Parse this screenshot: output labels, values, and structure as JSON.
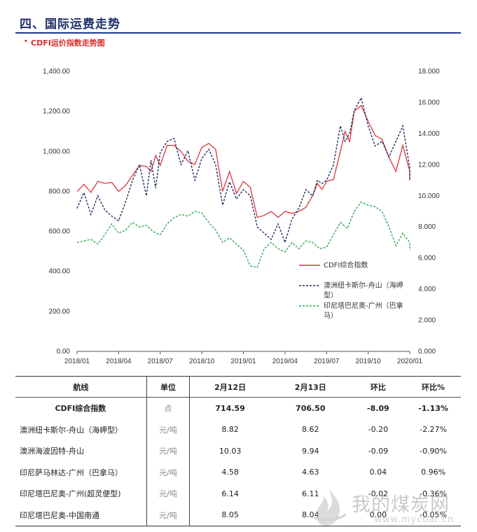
{
  "header": {
    "section_title": "四、国际运费走势",
    "bullet": "•",
    "subtitle": "CDFI运价指数走势图"
  },
  "chart_data": {
    "type": "line",
    "x_ticks": [
      "2018/01",
      "2018/04",
      "2018/07",
      "2018/10",
      "2019/01",
      "2019/04",
      "2019/07",
      "2019/10",
      "2020/01"
    ],
    "x_range": [
      "2018/01",
      "2020/01"
    ],
    "y_left": {
      "min": 0,
      "max": 1400,
      "ticks": [
        "0.00",
        "200.00",
        "400.00",
        "600.00",
        "800.00",
        "1,000.00",
        "1,200.00",
        "1,400.00"
      ]
    },
    "y_right": {
      "min": 0,
      "max": 18,
      "ticks": [
        "0.000",
        "2.000",
        "4.000",
        "6.000",
        "8.000",
        "10.000",
        "12.000",
        "14.000",
        "16.000",
        "18.000"
      ]
    },
    "legend_placement": "bottom-right",
    "series": [
      {
        "name": "CDFI综合指数",
        "axis": "left",
        "color": "#d9363e",
        "style": "solid",
        "points": [
          [
            "2018/01",
            800
          ],
          [
            "2018/01",
            835
          ],
          [
            "2018/02",
            795
          ],
          [
            "2018/02",
            850
          ],
          [
            "2018/03",
            840
          ],
          [
            "2018/03",
            845
          ],
          [
            "2018/04",
            800
          ],
          [
            "2018/04",
            830
          ],
          [
            "2018/05",
            880
          ],
          [
            "2018/05",
            930
          ],
          [
            "2018/06",
            925
          ],
          [
            "2018/06",
            900
          ],
          [
            "2018/06",
            980
          ],
          [
            "2018/07",
            930
          ],
          [
            "2018/07",
            1030
          ],
          [
            "2018/08",
            1030
          ],
          [
            "2018/08",
            1000
          ],
          [
            "2018/09",
            950
          ],
          [
            "2018/09",
            935
          ],
          [
            "2018/10",
            1020
          ],
          [
            "2018/10",
            1040
          ],
          [
            "2018/11",
            1010
          ],
          [
            "2018/11",
            800
          ],
          [
            "2018/12",
            900
          ],
          [
            "2018/12",
            790
          ],
          [
            "2019/01",
            850
          ],
          [
            "2019/01",
            820
          ],
          [
            "2019/02",
            670
          ],
          [
            "2019/02",
            680
          ],
          [
            "2019/03",
            700
          ],
          [
            "2019/03",
            670
          ],
          [
            "2019/04",
            700
          ],
          [
            "2019/04",
            690
          ],
          [
            "2019/05",
            700
          ],
          [
            "2019/05",
            720
          ],
          [
            "2019/06",
            780
          ],
          [
            "2019/06",
            840
          ],
          [
            "2019/06",
            810
          ],
          [
            "2019/07",
            850
          ],
          [
            "2019/07",
            860
          ],
          [
            "2019/08",
            1000
          ],
          [
            "2019/08",
            1100
          ],
          [
            "2019/08",
            1050
          ],
          [
            "2019/09",
            1200
          ],
          [
            "2019/09",
            1230
          ],
          [
            "2019/10",
            1150
          ],
          [
            "2019/10",
            1080
          ],
          [
            "2019/11",
            1060
          ],
          [
            "2019/11",
            970
          ],
          [
            "2019/12",
            900
          ],
          [
            "2019/12",
            1030
          ],
          [
            "2020/01",
            900
          ],
          [
            "2020/01",
            855
          ]
        ]
      },
      {
        "name": "澳洲纽卡斯尔-舟山（海岬型）",
        "axis": "right",
        "color": "#1f2f5f",
        "style": "dashed",
        "points": [
          [
            "2018/01",
            9.2
          ],
          [
            "2018/01",
            10.2
          ],
          [
            "2018/02",
            8.8
          ],
          [
            "2018/02",
            10.0
          ],
          [
            "2018/03",
            9.1
          ],
          [
            "2018/03",
            8.7
          ],
          [
            "2018/04",
            8.4
          ],
          [
            "2018/04",
            9.6
          ],
          [
            "2018/05",
            11.0
          ],
          [
            "2018/05",
            12.0
          ],
          [
            "2018/06",
            10.0
          ],
          [
            "2018/06",
            12.3
          ],
          [
            "2018/06",
            10.5
          ],
          [
            "2018/07",
            12.8
          ],
          [
            "2018/07",
            13.5
          ],
          [
            "2018/08",
            13.7
          ],
          [
            "2018/08",
            12.0
          ],
          [
            "2018/09",
            12.9
          ],
          [
            "2018/09",
            11.0
          ],
          [
            "2018/10",
            12.4
          ],
          [
            "2018/10",
            13.0
          ],
          [
            "2018/11",
            12.0
          ],
          [
            "2018/11",
            9.4
          ],
          [
            "2018/12",
            10.9
          ],
          [
            "2018/12",
            9.8
          ],
          [
            "2019/01",
            10.4
          ],
          [
            "2019/01",
            10.0
          ],
          [
            "2019/02",
            8.0
          ],
          [
            "2019/02",
            7.6
          ],
          [
            "2019/03",
            7.2
          ],
          [
            "2019/03",
            8.2
          ],
          [
            "2019/04",
            7.0
          ],
          [
            "2019/04",
            8.5
          ],
          [
            "2019/05",
            9.2
          ],
          [
            "2019/05",
            10.4
          ],
          [
            "2019/06",
            10.0
          ],
          [
            "2019/06",
            11.0
          ],
          [
            "2019/06",
            10.8
          ],
          [
            "2019/07",
            11.0
          ],
          [
            "2019/07",
            12.0
          ],
          [
            "2019/08",
            14.5
          ],
          [
            "2019/08",
            13.5
          ],
          [
            "2019/08",
            14.0
          ],
          [
            "2019/09",
            15.5
          ],
          [
            "2019/09",
            16.3
          ],
          [
            "2019/10",
            14.5
          ],
          [
            "2019/10",
            13.2
          ],
          [
            "2019/11",
            13.5
          ],
          [
            "2019/11",
            12.5
          ],
          [
            "2019/12",
            13.5
          ],
          [
            "2019/12",
            14.5
          ],
          [
            "2020/01",
            11.8
          ],
          [
            "2020/01",
            11.0
          ]
        ]
      },
      {
        "name": "印尼塔巴尼奥-广州（巴拿马）",
        "axis": "right",
        "color": "#2eaa55",
        "style": "dashed",
        "points": [
          [
            "2018/01",
            7.0
          ],
          [
            "2018/02",
            7.2
          ],
          [
            "2018/02",
            6.9
          ],
          [
            "2018/03",
            7.5
          ],
          [
            "2018/03",
            8.2
          ],
          [
            "2018/04",
            7.6
          ],
          [
            "2018/04",
            7.8
          ],
          [
            "2018/05",
            8.3
          ],
          [
            "2018/05",
            8.0
          ],
          [
            "2018/06",
            8.1
          ],
          [
            "2018/06",
            7.7
          ],
          [
            "2018/07",
            7.5
          ],
          [
            "2018/07",
            8.2
          ],
          [
            "2018/08",
            8.6
          ],
          [
            "2018/08",
            8.8
          ],
          [
            "2018/09",
            8.7
          ],
          [
            "2018/09",
            9.0
          ],
          [
            "2018/10",
            8.9
          ],
          [
            "2018/10",
            8.3
          ],
          [
            "2018/11",
            7.8
          ],
          [
            "2018/11",
            7.0
          ],
          [
            "2018/12",
            7.3
          ],
          [
            "2018/12",
            6.9
          ],
          [
            "2019/01",
            6.5
          ],
          [
            "2019/01",
            5.5
          ],
          [
            "2019/02",
            5.4
          ],
          [
            "2019/02",
            6.6
          ],
          [
            "2019/03",
            7.0
          ],
          [
            "2019/03",
            6.6
          ],
          [
            "2019/04",
            6.4
          ],
          [
            "2019/04",
            7.0
          ],
          [
            "2019/05",
            6.6
          ],
          [
            "2019/05",
            7.1
          ],
          [
            "2019/06",
            7.0
          ],
          [
            "2019/06",
            6.6
          ],
          [
            "2019/07",
            6.7
          ],
          [
            "2019/07",
            7.5
          ],
          [
            "2019/08",
            8.3
          ],
          [
            "2019/08",
            7.9
          ],
          [
            "2019/09",
            9.0
          ],
          [
            "2019/09",
            9.6
          ],
          [
            "2019/10",
            9.4
          ],
          [
            "2019/10",
            9.3
          ],
          [
            "2019/11",
            9.0
          ],
          [
            "2019/11",
            8.0
          ],
          [
            "2019/12",
            6.8
          ],
          [
            "2019/12",
            7.6
          ],
          [
            "2020/01",
            7.0
          ],
          [
            "2020/01",
            6.5
          ]
        ]
      }
    ]
  },
  "table": {
    "headers": [
      "航线",
      "单位",
      "2月12日",
      "2月13日",
      "环比",
      "环比%"
    ],
    "rows": [
      {
        "route": "CDFI综合指数",
        "unit": "点",
        "d1": "714.59",
        "d2": "706.50",
        "chg": "-8.09",
        "pct": "-1.13%"
      },
      {
        "route": "澳洲纽卡斯尔-舟山（海岬型）",
        "unit": "元/吨",
        "d1": "8.82",
        "d2": "8.62",
        "chg": "-0.20",
        "pct": "-2.27%"
      },
      {
        "route": "澳洲海波因特-舟山",
        "unit": "元/吨",
        "d1": "10.03",
        "d2": "9.94",
        "chg": "-0.09",
        "pct": "-0.90%"
      },
      {
        "route": "印尼萨马林达-广州（巴拿马）",
        "unit": "元/吨",
        "d1": "4.58",
        "d2": "4.63",
        "chg": "0.04",
        "pct": "0.96%"
      },
      {
        "route": "印尼塔巴尼奥-广州(超灵便型)",
        "unit": "元/吨",
        "d1": "6.14",
        "d2": "6.11",
        "chg": "-0.02",
        "pct": "-0.36%"
      },
      {
        "route": "印尼塔巴尼奥-中国南通",
        "unit": "元/吨",
        "d1": "8.05",
        "d2": "8.04",
        "chg": "0.00",
        "pct": "-0.05%"
      }
    ]
  },
  "watermark": {
    "text_cn": "我的煤炭网",
    "url": "www.mycoal.cn"
  }
}
